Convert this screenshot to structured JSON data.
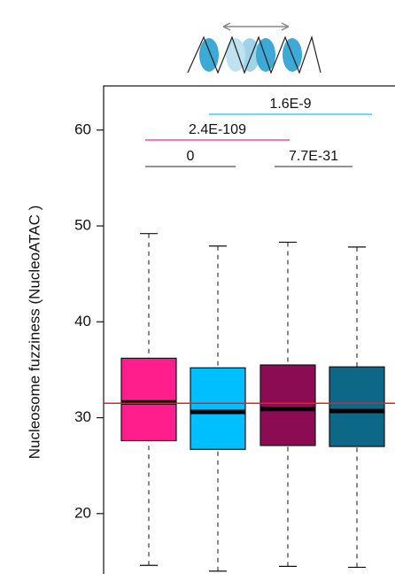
{
  "chart_data": {
    "type": "box",
    "y_label": "Nucleosome fuzziness (NucleoATAC )",
    "categories": [
      null,
      null,
      null,
      null
    ],
    "boxes": [
      {
        "color": "#ff1e8c",
        "low": 14.6,
        "q1": 27.6,
        "median": 31.6,
        "q3": 36.2,
        "high": 49.2
      },
      {
        "color": "#00bfff",
        "low": 14.0,
        "q1": 26.7,
        "median": 30.6,
        "q3": 35.2,
        "high": 47.9
      },
      {
        "color": "#8b0c52",
        "low": 14.5,
        "q1": 27.1,
        "median": 30.9,
        "q3": 35.5,
        "high": 48.3
      },
      {
        "color": "#0d6888",
        "low": 14.4,
        "q1": 27.0,
        "median": 30.7,
        "q3": 35.3,
        "high": 47.8
      }
    ],
    "reference_line": 31.5,
    "reference_color": "#e8201c",
    "annotations": [
      {
        "text": "1.6E-9",
        "color": "#1ec0ef"
      },
      {
        "text": "2.4E-109",
        "color": "#f0288c"
      },
      {
        "text": "0",
        "color": "#555555"
      },
      {
        "text": "7.7E-31",
        "color": "#555555"
      }
    ],
    "ylim": [
      13.7,
      64.6
    ],
    "yticks": [
      20,
      30,
      40,
      50,
      60
    ]
  }
}
